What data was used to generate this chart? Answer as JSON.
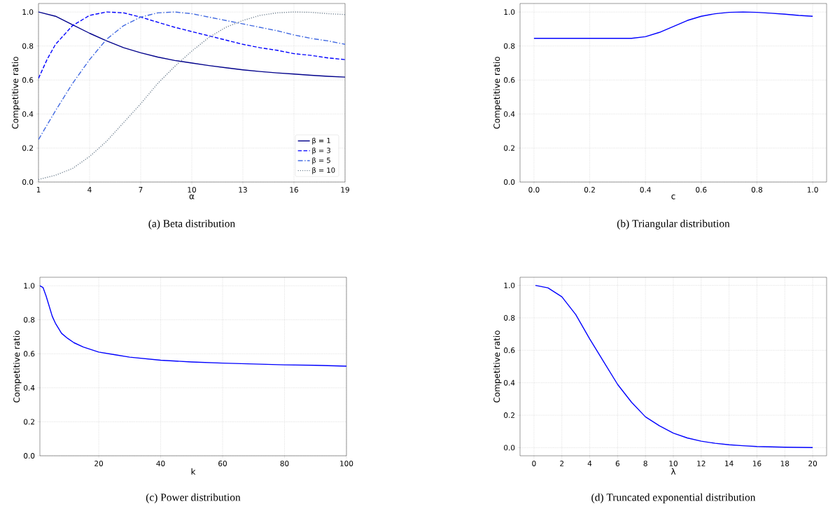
{
  "chart_data": [
    {
      "type": "line",
      "title": "(a) Beta distribution",
      "xlabel": "α",
      "ylabel": "Competitive ratio",
      "grid": true,
      "legend": "bottom right",
      "xlim": [
        1,
        19
      ],
      "ylim": [
        0,
        1.05
      ],
      "xticks": [
        1,
        4,
        7,
        10,
        13,
        16,
        19
      ],
      "yticks": [
        {
          "value": 0,
          "label": "0.0"
        },
        {
          "value": 0.2,
          "label": "0.2"
        },
        {
          "value": 0.4,
          "label": "0.4"
        },
        {
          "value": 0.6,
          "label": "0.6"
        },
        {
          "value": 0.8,
          "label": "0.8"
        },
        {
          "value": 1,
          "label": "1.0"
        }
      ],
      "x": [
        1,
        2,
        3,
        4,
        5,
        6,
        7,
        8,
        9,
        10,
        11,
        12,
        13,
        14,
        15,
        16,
        17,
        18,
        19
      ],
      "series": [
        {
          "name": "β = 1",
          "color": "#00008b",
          "line_style": "solid",
          "values": [
            1.0,
            0.975,
            0.925,
            0.875,
            0.83,
            0.79,
            0.76,
            0.735,
            0.715,
            0.7,
            0.685,
            0.672,
            0.66,
            0.65,
            0.642,
            0.635,
            0.628,
            0.622,
            0.617
          ]
        },
        {
          "name": "β = 3",
          "color": "#0000ff",
          "line_style": "dashed",
          "x": [
            1,
            1.5,
            2,
            3,
            4,
            5,
            6,
            7,
            8,
            9,
            10,
            11,
            12,
            13,
            14,
            15,
            16,
            17,
            18,
            19
          ],
          "values": [
            0.61,
            0.72,
            0.81,
            0.92,
            0.98,
            1.0,
            0.995,
            0.97,
            0.94,
            0.91,
            0.885,
            0.86,
            0.835,
            0.81,
            0.79,
            0.775,
            0.755,
            0.745,
            0.73,
            0.72
          ]
        },
        {
          "name": "β = 5",
          "color": "#4169e1",
          "line_style": "dashdot",
          "values": [
            0.25,
            0.42,
            0.58,
            0.72,
            0.84,
            0.92,
            0.97,
            0.995,
            1.0,
            0.99,
            0.97,
            0.95,
            0.93,
            0.91,
            0.89,
            0.865,
            0.845,
            0.83,
            0.81
          ]
        },
        {
          "name": "β = 10",
          "color": "#708090",
          "line_style": "dotted",
          "values": [
            0.015,
            0.04,
            0.08,
            0.15,
            0.24,
            0.35,
            0.46,
            0.58,
            0.68,
            0.77,
            0.85,
            0.91,
            0.95,
            0.98,
            0.995,
            1.0,
            0.998,
            0.99,
            0.985
          ]
        }
      ]
    },
    {
      "type": "line",
      "title": "(b) Triangular distribution",
      "xlabel": "c",
      "ylabel": "Competitive ratio",
      "grid": true,
      "xlim": [
        -0.05,
        1.05
      ],
      "ylim": [
        0,
        1.05
      ],
      "xticks": [
        {
          "value": 0,
          "label": "0.0"
        },
        {
          "value": 0.2,
          "label": "0.2"
        },
        {
          "value": 0.4,
          "label": "0.4"
        },
        {
          "value": 0.6,
          "label": "0.6"
        },
        {
          "value": 0.8,
          "label": "0.8"
        },
        {
          "value": 1,
          "label": "1.0"
        }
      ],
      "yticks": [
        {
          "value": 0,
          "label": "0.0"
        },
        {
          "value": 0.2,
          "label": "0.2"
        },
        {
          "value": 0.4,
          "label": "0.4"
        },
        {
          "value": 0.6,
          "label": "0.6"
        },
        {
          "value": 0.8,
          "label": "0.8"
        },
        {
          "value": 1,
          "label": "1.0"
        }
      ],
      "x": [
        0,
        0.1,
        0.2,
        0.3,
        0.35,
        0.4,
        0.45,
        0.5,
        0.55,
        0.6,
        0.65,
        0.7,
        0.75,
        0.8,
        0.85,
        0.9,
        0.95,
        1.0
      ],
      "series": [
        {
          "color": "#0000ff",
          "values": [
            0.845,
            0.845,
            0.845,
            0.845,
            0.845,
            0.855,
            0.88,
            0.915,
            0.95,
            0.975,
            0.99,
            0.998,
            1.0,
            0.998,
            0.993,
            0.987,
            0.98,
            0.975
          ]
        }
      ]
    },
    {
      "type": "line",
      "title": "(c) Power distribution",
      "xlabel": "k",
      "ylabel": "Competitive ratio",
      "grid": true,
      "xlim": [
        1,
        100
      ],
      "ylim": [
        0,
        1.05
      ],
      "xticks": [
        20,
        40,
        60,
        80,
        100
      ],
      "yticks": [
        {
          "value": 0,
          "label": "0.0"
        },
        {
          "value": 0.2,
          "label": "0.2"
        },
        {
          "value": 0.4,
          "label": "0.4"
        },
        {
          "value": 0.6,
          "label": "0.6"
        },
        {
          "value": 0.8,
          "label": "0.8"
        },
        {
          "value": 1,
          "label": "1.0"
        }
      ],
      "x": [
        1,
        2,
        3,
        4,
        5,
        6,
        7,
        8,
        10,
        12,
        15,
        20,
        25,
        30,
        40,
        50,
        60,
        70,
        80,
        90,
        100
      ],
      "series": [
        {
          "color": "#0000ff",
          "values": [
            1.0,
            0.99,
            0.94,
            0.88,
            0.82,
            0.78,
            0.75,
            0.72,
            0.69,
            0.665,
            0.64,
            0.61,
            0.595,
            0.58,
            0.562,
            0.552,
            0.545,
            0.54,
            0.535,
            0.532,
            0.527
          ]
        }
      ]
    },
    {
      "type": "line",
      "title": "(d) Truncated exponential distribution",
      "xlabel": "λ",
      "ylabel": "Competitive ratio",
      "grid": true,
      "xlim": [
        -1,
        21
      ],
      "ylim": [
        -0.05,
        1.05
      ],
      "xticks": [
        0,
        2,
        4,
        6,
        8,
        10,
        12,
        14,
        16,
        18,
        20
      ],
      "yticks": [
        {
          "value": 0,
          "label": "0.0"
        },
        {
          "value": 0.2,
          "label": "0.2"
        },
        {
          "value": 0.4,
          "label": "0.4"
        },
        {
          "value": 0.6,
          "label": "0.6"
        },
        {
          "value": 0.8,
          "label": "0.8"
        },
        {
          "value": 1,
          "label": "1.0"
        }
      ],
      "x": [
        0.1,
        1,
        2,
        3,
        4,
        5,
        6,
        7,
        8,
        9,
        10,
        11,
        12,
        13,
        14,
        15,
        16,
        18,
        20
      ],
      "series": [
        {
          "color": "#0000ff",
          "values": [
            1.0,
            0.985,
            0.93,
            0.82,
            0.67,
            0.53,
            0.39,
            0.28,
            0.19,
            0.135,
            0.09,
            0.06,
            0.04,
            0.027,
            0.018,
            0.012,
            0.007,
            0.003,
            0.001
          ]
        }
      ]
    }
  ]
}
